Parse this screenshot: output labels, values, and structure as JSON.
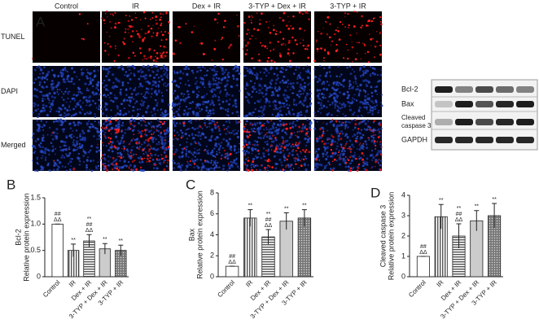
{
  "panel_a": {
    "label": "A",
    "columns": [
      "Control",
      "IR",
      "Dex + IR",
      "3-TYP + Dex + IR",
      "3-TYP + IR"
    ],
    "rows": [
      "TUNEL",
      "DAPI",
      "Merged"
    ],
    "blot_labels": [
      "Bcl-2",
      "Bax",
      "Cleaved\ncaspase 3",
      "GAPDH"
    ]
  },
  "panel_labels": [
    "B",
    "C",
    "D"
  ],
  "chart_data": [
    {
      "type": "bar",
      "ylabel": [
        "Bcl-2",
        "Relative protein expression"
      ],
      "categories": [
        "Control",
        "IR",
        "Dex + IR",
        "3-TYP + Dex + IR",
        "3-TYP + IR"
      ],
      "values": [
        1.0,
        0.5,
        0.68,
        0.53,
        0.5
      ],
      "errors": [
        0,
        0.12,
        0.12,
        0.1,
        0.1
      ],
      "annotations": [
        [
          "##",
          "ΔΔ"
        ],
        [
          "**"
        ],
        [
          "**",
          "##",
          "ΔΔ"
        ],
        [
          "**"
        ],
        [
          "**"
        ]
      ],
      "ylim": [
        0,
        1.5
      ],
      "yticks": [
        0,
        0.5,
        {
          "value": 1,
          "label": "1.0"
        },
        1.5
      ]
    },
    {
      "type": "bar",
      "ylabel": [
        "Bax",
        "Relative protein expression"
      ],
      "categories": [
        "Control",
        "IR",
        "Dex + IR",
        "3-TYP + Dex + IR",
        "3-TYP + IR"
      ],
      "values": [
        1.0,
        5.6,
        3.8,
        5.3,
        5.6
      ],
      "errors": [
        0,
        0.8,
        0.7,
        0.8,
        0.8
      ],
      "annotations": [
        [
          "##",
          "ΔΔ"
        ],
        [
          "**"
        ],
        [
          "**",
          "##",
          "ΔΔ"
        ],
        [
          "**"
        ],
        [
          "**"
        ]
      ],
      "ylim": [
        0,
        8
      ],
      "yticks": [
        0,
        2,
        4,
        6,
        8
      ]
    },
    {
      "type": "bar",
      "ylabel": [
        "Cleaved caspase 3",
        "Relative protein expression"
      ],
      "categories": [
        "Control",
        "IR",
        "Dex + IR",
        "3-TYP + Dex + IR",
        "3-TYP + IR"
      ],
      "values": [
        1.0,
        2.95,
        2.0,
        2.75,
        3.0
      ],
      "errors": [
        0,
        0.6,
        0.6,
        0.5,
        0.6
      ],
      "annotations": [
        [
          "##",
          "ΔΔ"
        ],
        [
          "**"
        ],
        [
          "**",
          "##",
          "ΔΔ"
        ],
        [
          "**"
        ],
        [
          "**"
        ]
      ],
      "ylim": [
        0,
        4
      ],
      "yticks": [
        0,
        1,
        2,
        3,
        4
      ]
    }
  ]
}
